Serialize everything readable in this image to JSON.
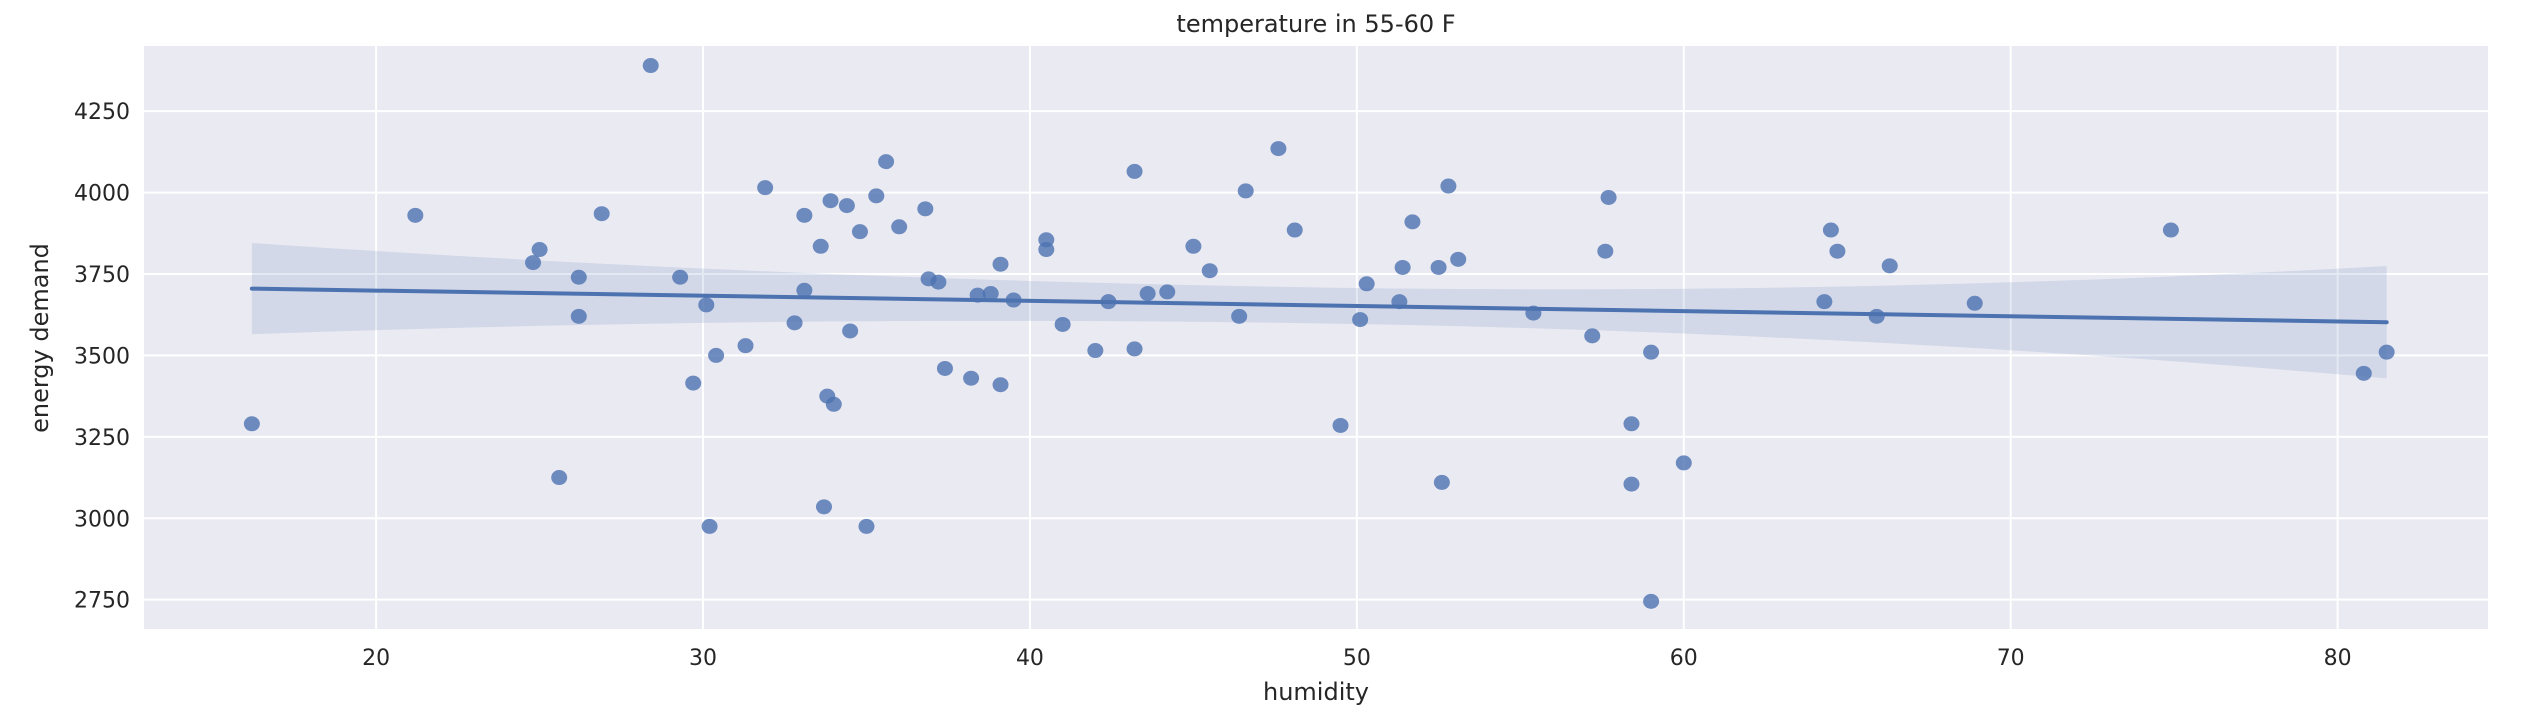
{
  "chart_data": {
    "type": "scatter",
    "title": "temperature in 55-60 F",
    "xlabel": "humidity",
    "ylabel": "energy demand",
    "xlim": [
      12.9,
      84.6
    ],
    "ylim": [
      2660,
      4450
    ],
    "xticks": [
      20,
      30,
      40,
      50,
      60,
      70,
      80
    ],
    "yticks": [
      2750,
      3000,
      3250,
      3500,
      3750,
      4000,
      4250
    ],
    "grid": true,
    "legend": null,
    "colors": {
      "background": "#eaeaf2",
      "grid": "#ffffff",
      "points": "#4c72b0",
      "line": "#4c72b0",
      "ci_band": "#4c72b0"
    },
    "regression": {
      "x_start": 16.2,
      "y_start": 3705,
      "x_end": 81.5,
      "y_end": 3602,
      "ci_start": [
        3565,
        3845
      ],
      "ci_end": [
        3425,
        3770
      ]
    },
    "points": [
      [
        16.2,
        3290
      ],
      [
        21.2,
        3930
      ],
      [
        24.8,
        3785
      ],
      [
        25.0,
        3825
      ],
      [
        25.6,
        3125
      ],
      [
        26.2,
        3740
      ],
      [
        26.2,
        3620
      ],
      [
        26.9,
        3935
      ],
      [
        28.4,
        4390
      ],
      [
        29.3,
        3740
      ],
      [
        29.7,
        3415
      ],
      [
        30.1,
        3655
      ],
      [
        30.2,
        2975
      ],
      [
        30.4,
        3500
      ],
      [
        31.3,
        3530
      ],
      [
        31.9,
        4015
      ],
      [
        32.8,
        3600
      ],
      [
        33.1,
        3930
      ],
      [
        33.1,
        3700
      ],
      [
        33.6,
        3835
      ],
      [
        33.7,
        3035
      ],
      [
        33.8,
        3375
      ],
      [
        33.9,
        3975
      ],
      [
        34.0,
        3350
      ],
      [
        34.4,
        3960
      ],
      [
        34.5,
        3575
      ],
      [
        34.8,
        3880
      ],
      [
        35.0,
        2975
      ],
      [
        35.3,
        3990
      ],
      [
        35.6,
        4095
      ],
      [
        36.0,
        3895
      ],
      [
        36.8,
        3950
      ],
      [
        36.9,
        3735
      ],
      [
        37.2,
        3725
      ],
      [
        37.4,
        3460
      ],
      [
        38.2,
        3430
      ],
      [
        38.4,
        3685
      ],
      [
        38.8,
        3690
      ],
      [
        39.1,
        3780
      ],
      [
        39.1,
        3410
      ],
      [
        39.5,
        3670
      ],
      [
        40.5,
        3855
      ],
      [
        40.5,
        3825
      ],
      [
        41.0,
        3595
      ],
      [
        42.0,
        3515
      ],
      [
        42.4,
        3665
      ],
      [
        43.2,
        4065
      ],
      [
        43.2,
        3520
      ],
      [
        43.6,
        3690
      ],
      [
        44.2,
        3695
      ],
      [
        45.0,
        3835
      ],
      [
        45.5,
        3760
      ],
      [
        46.4,
        3620
      ],
      [
        46.6,
        4005
      ],
      [
        47.6,
        4135
      ],
      [
        48.1,
        3885
      ],
      [
        49.5,
        3285
      ],
      [
        50.1,
        3610
      ],
      [
        50.3,
        3720
      ],
      [
        51.3,
        3665
      ],
      [
        51.4,
        3770
      ],
      [
        51.7,
        3910
      ],
      [
        52.5,
        3770
      ],
      [
        52.6,
        3110
      ],
      [
        52.8,
        4020
      ],
      [
        53.1,
        3795
      ],
      [
        55.4,
        3630
      ],
      [
        57.2,
        3560
      ],
      [
        57.6,
        3820
      ],
      [
        57.7,
        3985
      ],
      [
        58.4,
        3290
      ],
      [
        58.4,
        3105
      ],
      [
        59.0,
        3510
      ],
      [
        59.0,
        2745
      ],
      [
        60.0,
        3170
      ],
      [
        64.3,
        3665
      ],
      [
        64.5,
        3885
      ],
      [
        64.7,
        3820
      ],
      [
        65.9,
        3620
      ],
      [
        66.3,
        3775
      ],
      [
        68.9,
        3660
      ],
      [
        74.9,
        3885
      ],
      [
        80.8,
        3445
      ],
      [
        81.5,
        3510
      ]
    ]
  }
}
